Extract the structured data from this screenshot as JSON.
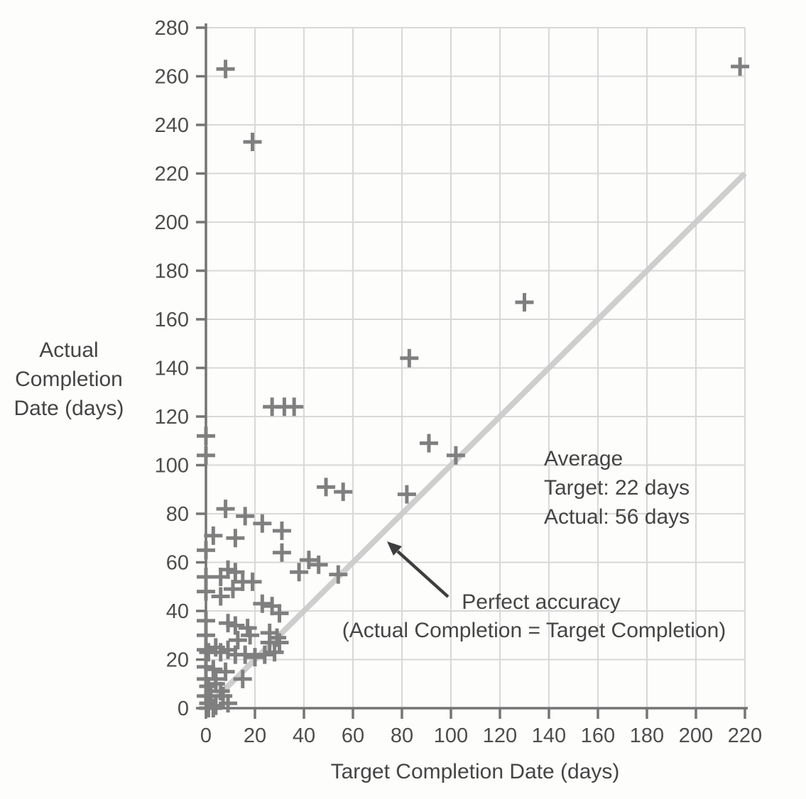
{
  "chart_data": {
    "type": "scatter",
    "title": "",
    "xlabel": "Target Completion Date (days)",
    "ylabel": "Actual Completion Date (days)",
    "ylabel_lines": [
      "Actual",
      "Completion",
      "Date (days)"
    ],
    "xlim": [
      0,
      220
    ],
    "ylim": [
      0,
      280
    ],
    "xticks": [
      0,
      20,
      40,
      60,
      80,
      100,
      120,
      140,
      160,
      180,
      200,
      220
    ],
    "yticks": [
      0,
      20,
      40,
      60,
      80,
      100,
      120,
      140,
      160,
      180,
      200,
      220,
      240,
      260,
      280
    ],
    "grid": true,
    "legend_position": "none",
    "marker": "plus",
    "points": [
      [
        8,
        263
      ],
      [
        19,
        233
      ],
      [
        218,
        264
      ],
      [
        130,
        167
      ],
      [
        83,
        144
      ],
      [
        91,
        109
      ],
      [
        102,
        104
      ],
      [
        27,
        124
      ],
      [
        32,
        124
      ],
      [
        36,
        124
      ],
      [
        0,
        112
      ],
      [
        0,
        104
      ],
      [
        49,
        91
      ],
      [
        56,
        89
      ],
      [
        82,
        88
      ],
      [
        8,
        82
      ],
      [
        16,
        79
      ],
      [
        23,
        76
      ],
      [
        31,
        73
      ],
      [
        3,
        71
      ],
      [
        12,
        70
      ],
      [
        0,
        65
      ],
      [
        31,
        64
      ],
      [
        42,
        61
      ],
      [
        46,
        59
      ],
      [
        38,
        56
      ],
      [
        54,
        55
      ],
      [
        0,
        54
      ],
      [
        6,
        54
      ],
      [
        9,
        57
      ],
      [
        12,
        56
      ],
      [
        15,
        52
      ],
      [
        19,
        52
      ],
      [
        11,
        49
      ],
      [
        0,
        48
      ],
      [
        6,
        46
      ],
      [
        23,
        43
      ],
      [
        27,
        42
      ],
      [
        30,
        39
      ],
      [
        0,
        36
      ],
      [
        9,
        35
      ],
      [
        12,
        34
      ],
      [
        17,
        33
      ],
      [
        0,
        30
      ],
      [
        18,
        30
      ],
      [
        26,
        31
      ],
      [
        29,
        29
      ],
      [
        26,
        27
      ],
      [
        30,
        27
      ],
      [
        13,
        28
      ],
      [
        0,
        24
      ],
      [
        4,
        25
      ],
      [
        9,
        24
      ],
      [
        1,
        23
      ],
      [
        6,
        23
      ],
      [
        12,
        22
      ],
      [
        16,
        22
      ],
      [
        20,
        21
      ],
      [
        24,
        22
      ],
      [
        28,
        23
      ],
      [
        0,
        17
      ],
      [
        3,
        16
      ],
      [
        8,
        15
      ],
      [
        0,
        12
      ],
      [
        4,
        12
      ],
      [
        15,
        12
      ],
      [
        4,
        10
      ],
      [
        1,
        9
      ],
      [
        6,
        7
      ],
      [
        7,
        5
      ],
      [
        2,
        5
      ],
      [
        0,
        5
      ],
      [
        9,
        2
      ],
      [
        1,
        2
      ],
      [
        4,
        1
      ],
      [
        1,
        0
      ],
      [
        3,
        0
      ]
    ],
    "reference_line": {
      "from": [
        0,
        0
      ],
      "to": [
        220,
        220
      ],
      "label_line1": "Perfect accuracy",
      "label_line2": "(Actual Completion = Target Completion)"
    },
    "annotation": {
      "lines": [
        "Average",
        "Target: 22 days",
        "Actual: 56 days"
      ]
    },
    "colors": {
      "background": "#fdfdfc",
      "grid": "#d8d8d8",
      "axis": "#757575",
      "tick_text": "#4d4d4d",
      "marker": "#7f7f7f",
      "reference_line": "#cccccc",
      "annotation_text": "#454545",
      "arrow": "#3e3e3e"
    }
  }
}
